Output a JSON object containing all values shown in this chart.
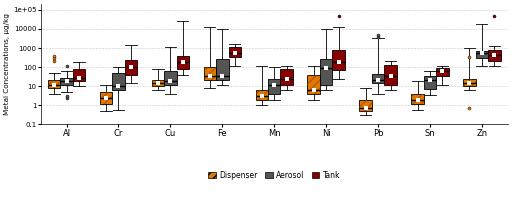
{
  "metals": [
    "Al",
    "Cr",
    "Cu",
    "Fe",
    "Mn",
    "Ni",
    "Pb",
    "Sn",
    "Zn"
  ],
  "ylabel": "Metal Concentrations, μg/kg",
  "colors": {
    "Dispenser": "#E07800",
    "Aerosol": "#555555",
    "Tank": "#8B0000"
  },
  "legend_labels": [
    "Dispenser",
    "Aerosol",
    "Tank"
  ],
  "box_data": {
    "Al": {
      "Dispenser": {
        "whislo": 4.0,
        "q1": 8.0,
        "med": 12.0,
        "q3": 22.0,
        "whishi": 50.0,
        "fliers_lo": [],
        "fliers_hi": [
          200.0,
          300.0,
          400.0
        ]
      },
      "Aerosol": {
        "whislo": 5.0,
        "q1": 12.0,
        "med": 18.0,
        "q3": 28.0,
        "whishi": 60.0,
        "fliers_lo": [
          2.5,
          3.0
        ],
        "fliers_hi": [
          120.0
        ]
      },
      "Tank": {
        "whislo": 10.0,
        "q1": 18.0,
        "med": 28.0,
        "q3": 80.0,
        "whishi": 180.0,
        "fliers_lo": [],
        "fliers_hi": []
      }
    },
    "Cr": {
      "Dispenser": {
        "whislo": 0.5,
        "q1": 1.2,
        "med": 2.5,
        "q3": 5.0,
        "whishi": 12.0,
        "fliers_lo": [],
        "fliers_hi": []
      },
      "Aerosol": {
        "whislo": 0.6,
        "q1": 6.0,
        "med": 10.0,
        "q3": 50.0,
        "whishi": 100.0,
        "fliers_lo": [],
        "fliers_hi": []
      },
      "Tank": {
        "whislo": 15.0,
        "q1": 40.0,
        "med": 100.0,
        "q3": 250.0,
        "whishi": 1500.0,
        "fliers_lo": [],
        "fliers_hi": []
      }
    },
    "Cu": {
      "Dispenser": {
        "whislo": 6.0,
        "q1": 10.0,
        "med": 15.0,
        "q3": 22.0,
        "whishi": 80.0,
        "fliers_lo": [],
        "fliers_hi": []
      },
      "Aerosol": {
        "whislo": 4.0,
        "q1": 12.0,
        "med": 18.0,
        "q3": 60.0,
        "whishi": 1200.0,
        "fliers_lo": [],
        "fliers_hi": []
      },
      "Tank": {
        "whislo": 40.0,
        "q1": 80.0,
        "med": 180.0,
        "q3": 400.0,
        "whishi": 25000.0,
        "fliers_lo": [],
        "fliers_hi": []
      }
    },
    "Fe": {
      "Dispenser": {
        "whislo": 8.0,
        "q1": 20.0,
        "med": 35.0,
        "q3": 100.0,
        "whishi": 12000.0,
        "fliers_lo": [],
        "fliers_hi": []
      },
      "Aerosol": {
        "whislo": 12.0,
        "q1": 22.0,
        "med": 35.0,
        "q3": 280.0,
        "whishi": 10000.0,
        "fliers_lo": [],
        "fliers_hi": []
      },
      "Tank": {
        "whislo": 120.0,
        "q1": 350.0,
        "med": 550.0,
        "q3": 1200.0,
        "whishi": 1600.0,
        "fliers_lo": [],
        "fliers_hi": []
      }
    },
    "Mn": {
      "Dispenser": {
        "whislo": 1.0,
        "q1": 2.0,
        "med": 3.0,
        "q3": 6.0,
        "whishi": 120.0,
        "fliers_lo": [],
        "fliers_hi": []
      },
      "Aerosol": {
        "whislo": 2.0,
        "q1": 4.0,
        "med": 12.0,
        "q3": 25.0,
        "whishi": 100.0,
        "fliers_lo": [],
        "fliers_hi": []
      },
      "Tank": {
        "whislo": 6.0,
        "q1": 12.0,
        "med": 25.0,
        "q3": 80.0,
        "whishi": 120.0,
        "fliers_lo": [],
        "fliers_hi": []
      }
    },
    "Ni": {
      "Dispenser": {
        "whislo": 2.0,
        "q1": 4.0,
        "med": 6.0,
        "q3": 40.0,
        "whishi": 120.0,
        "fliers_lo": [],
        "fliers_hi": []
      },
      "Aerosol": {
        "whislo": 6.0,
        "q1": 12.0,
        "med": 90.0,
        "q3": 280.0,
        "whishi": 10000.0,
        "fliers_lo": [],
        "fliers_hi": []
      },
      "Tank": {
        "whislo": 25.0,
        "q1": 70.0,
        "med": 180.0,
        "q3": 750.0,
        "whishi": 12000.0,
        "fliers_lo": [],
        "fliers_hi": [
          50000.0
        ]
      }
    },
    "Pb": {
      "Dispenser": {
        "whislo": 0.3,
        "q1": 0.5,
        "med": 0.7,
        "q3": 2.0,
        "whishi": 8.0,
        "fliers_lo": [],
        "fliers_hi": []
      },
      "Aerosol": {
        "whislo": 4.0,
        "q1": 14.0,
        "med": 22.0,
        "q3": 45.0,
        "whishi": 3500.0,
        "fliers_lo": [],
        "fliers_hi": [
          4000.0,
          5000.0
        ]
      },
      "Tank": {
        "whislo": 6.0,
        "q1": 12.0,
        "med": 35.0,
        "q3": 130.0,
        "whishi": 200.0,
        "fliers_lo": [],
        "fliers_hi": []
      }
    },
    "Sn": {
      "Dispenser": {
        "whislo": 0.6,
        "q1": 1.2,
        "med": 1.8,
        "q3": 4.0,
        "whishi": 18.0,
        "fliers_lo": [],
        "fliers_hi": []
      },
      "Aerosol": {
        "whislo": 3.5,
        "q1": 7.0,
        "med": 20.0,
        "q3": 35.0,
        "whishi": 65.0,
        "fliers_lo": [],
        "fliers_hi": []
      },
      "Tank": {
        "whislo": 12.0,
        "q1": 35.0,
        "med": 65.0,
        "q3": 90.0,
        "whishi": 110.0,
        "fliers_lo": [],
        "fliers_hi": []
      }
    },
    "Zn": {
      "Dispenser": {
        "whislo": 6.0,
        "q1": 10.0,
        "med": 15.0,
        "q3": 25.0,
        "whishi": 1000.0,
        "fliers_lo": [
          0.7
        ],
        "fliers_hi": [
          350.0
        ]
      },
      "Aerosol": {
        "whislo": 120.0,
        "q1": 320.0,
        "med": 520.0,
        "q3": 720.0,
        "whishi": 18000.0,
        "fliers_lo": [],
        "fliers_hi": []
      },
      "Tank": {
        "whislo": 120.0,
        "q1": 220.0,
        "med": 420.0,
        "q3": 750.0,
        "whishi": 1300.0,
        "fliers_lo": [],
        "fliers_hi": [
          50000.0
        ]
      }
    }
  }
}
